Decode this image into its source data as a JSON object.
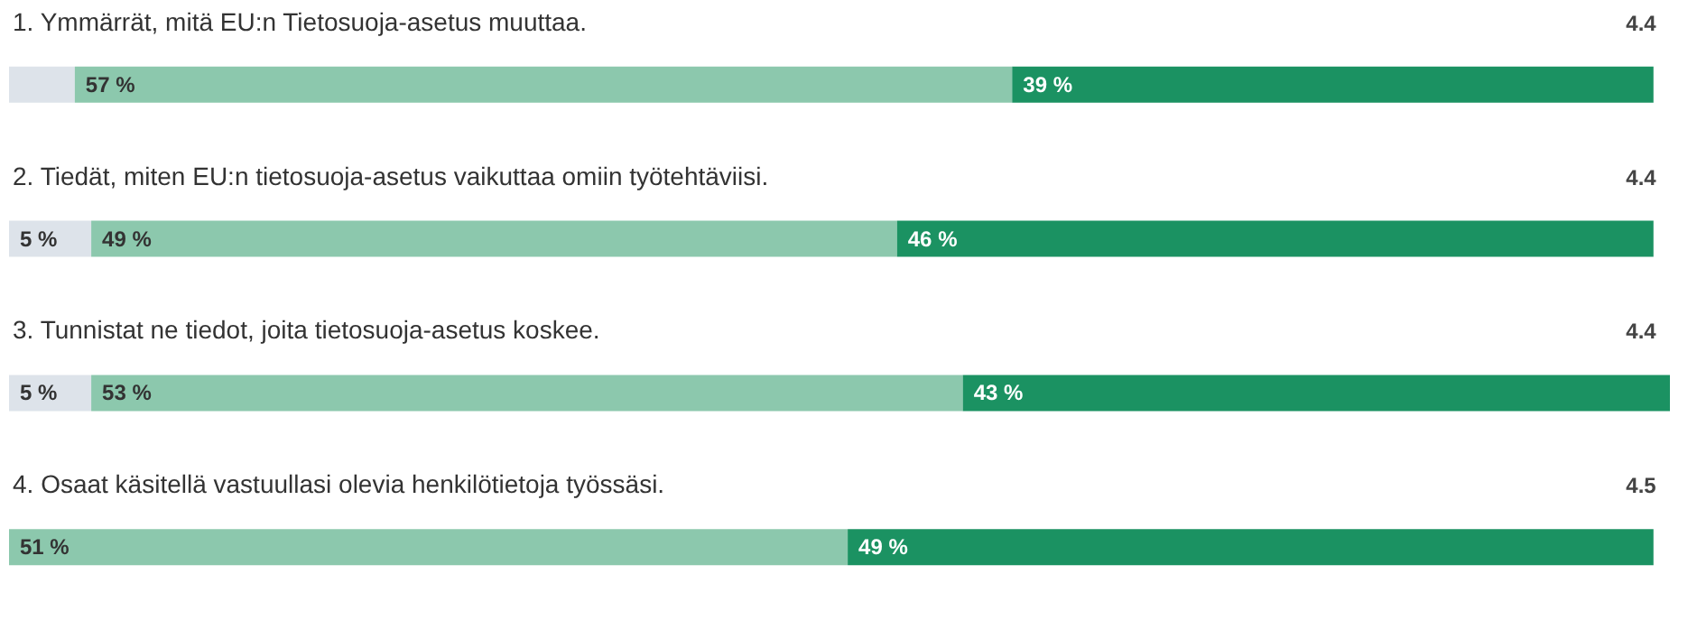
{
  "chart_data": {
    "type": "bar",
    "orientation": "horizontal",
    "stacked": true,
    "categories": [
      "1. Ymmärrät, mitä EU:n Tietosuoja-asetus muuttaa.",
      "2. Tiedät, miten EU:n tietosuoja-asetus vaikuttaa omiin työtehtäviisi.",
      "3. Tunnistat ne tiedot, joita tietosuoja-asetus koskee.",
      "4. Osaat käsitellä vastuullasi olevia henkilötietoja työssäsi."
    ],
    "series": [
      {
        "color": "#dde3ea",
        "values": [
          4,
          5,
          5,
          0
        ],
        "value_labels": [
          null,
          "5 %",
          "5 %",
          null
        ]
      },
      {
        "color": "#8cc8ad",
        "values": [
          57,
          49,
          53,
          51
        ],
        "value_labels": [
          "57 %",
          "49 %",
          "53 %",
          "51 %"
        ]
      },
      {
        "color": "#1b9262",
        "values": [
          39,
          46,
          43,
          49
        ],
        "value_labels": [
          "39 %",
          "46 %",
          "43 %",
          "49 %"
        ]
      }
    ],
    "annotations": [
      "4.4",
      "4.4",
      "4.4",
      "4.5"
    ]
  }
}
